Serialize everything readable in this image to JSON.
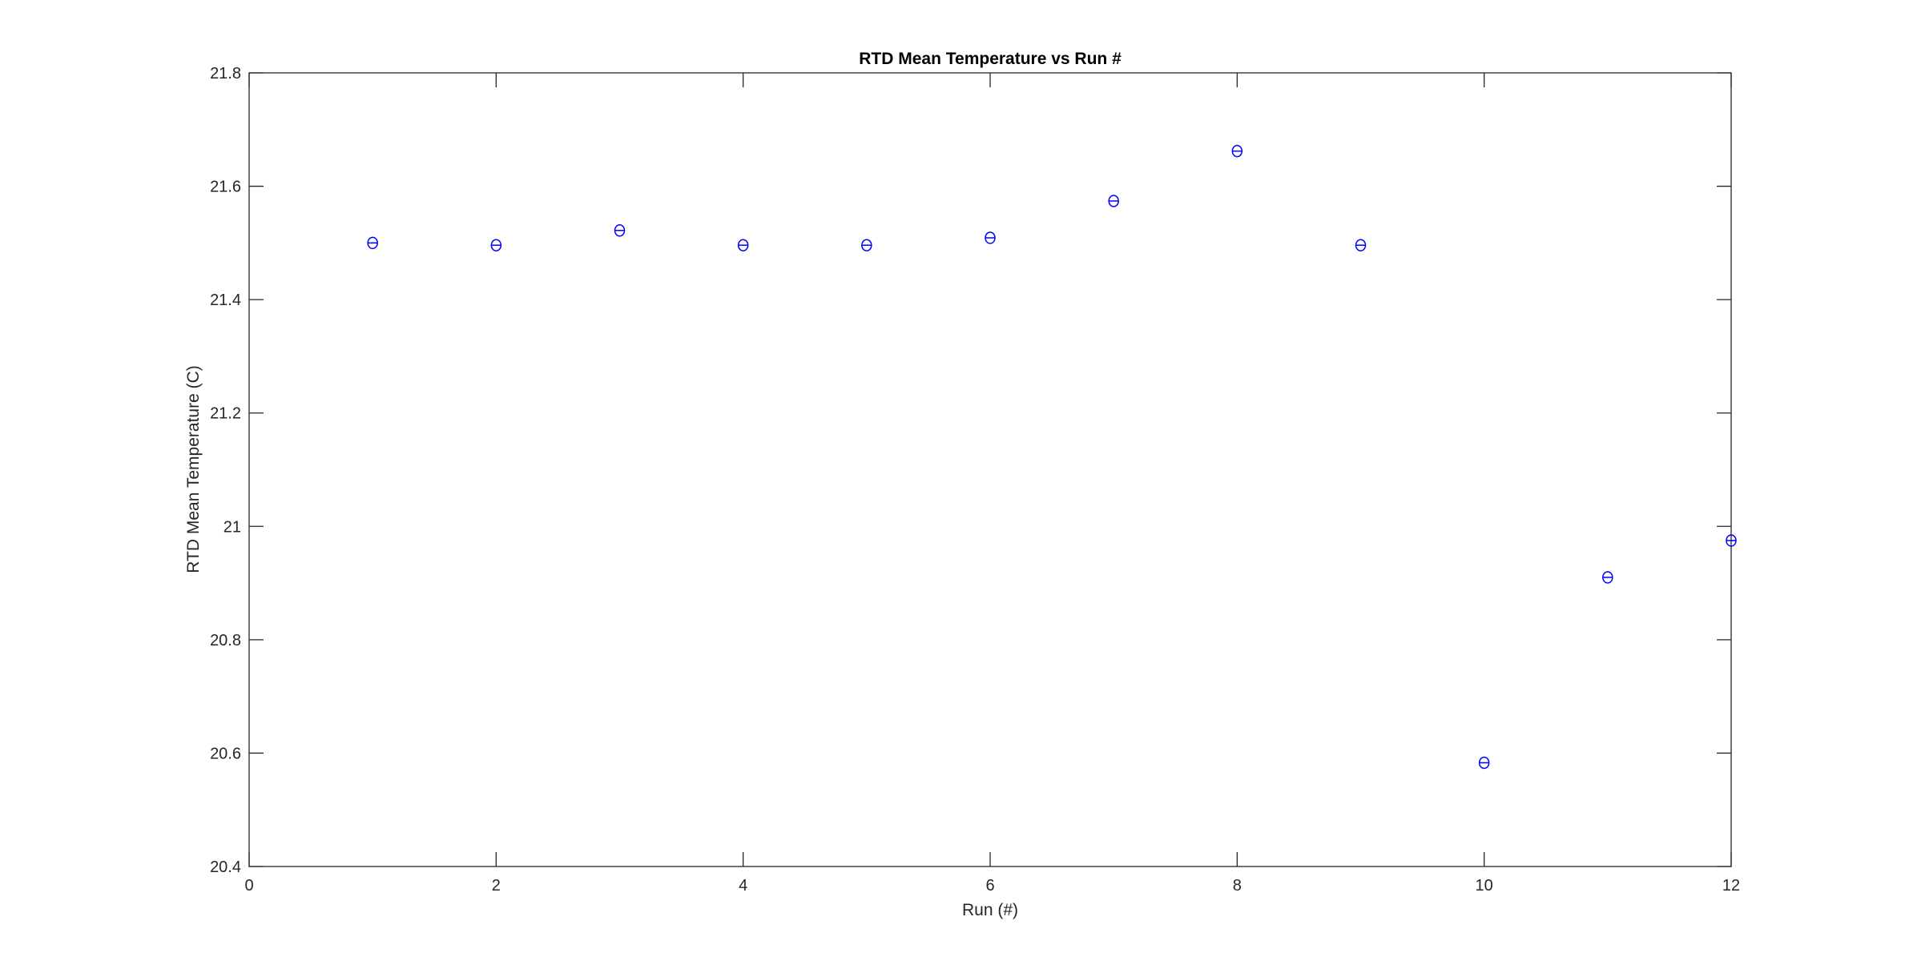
{
  "chart_data": {
    "type": "scatter",
    "title": "RTD Mean Temperature vs Run #",
    "xlabel": "Run (#)",
    "ylabel": "RTD Mean Temperature (C)",
    "xlim": [
      0,
      12
    ],
    "ylim": [
      20.4,
      21.8
    ],
    "xticks": [
      0,
      2,
      4,
      6,
      8,
      10,
      12
    ],
    "yticks": [
      20.4,
      20.6,
      20.8,
      21,
      21.2,
      21.4,
      21.6,
      21.8
    ],
    "grid": false,
    "marker": "circle-with-errorbar",
    "color": "#0000ff",
    "x": [
      1,
      2,
      3,
      4,
      5,
      6,
      7,
      8,
      9,
      10,
      11,
      12
    ],
    "y": [
      21.5,
      21.496,
      21.522,
      21.496,
      21.496,
      21.509,
      21.574,
      21.662,
      21.496,
      20.583,
      20.91,
      20.975
    ]
  }
}
